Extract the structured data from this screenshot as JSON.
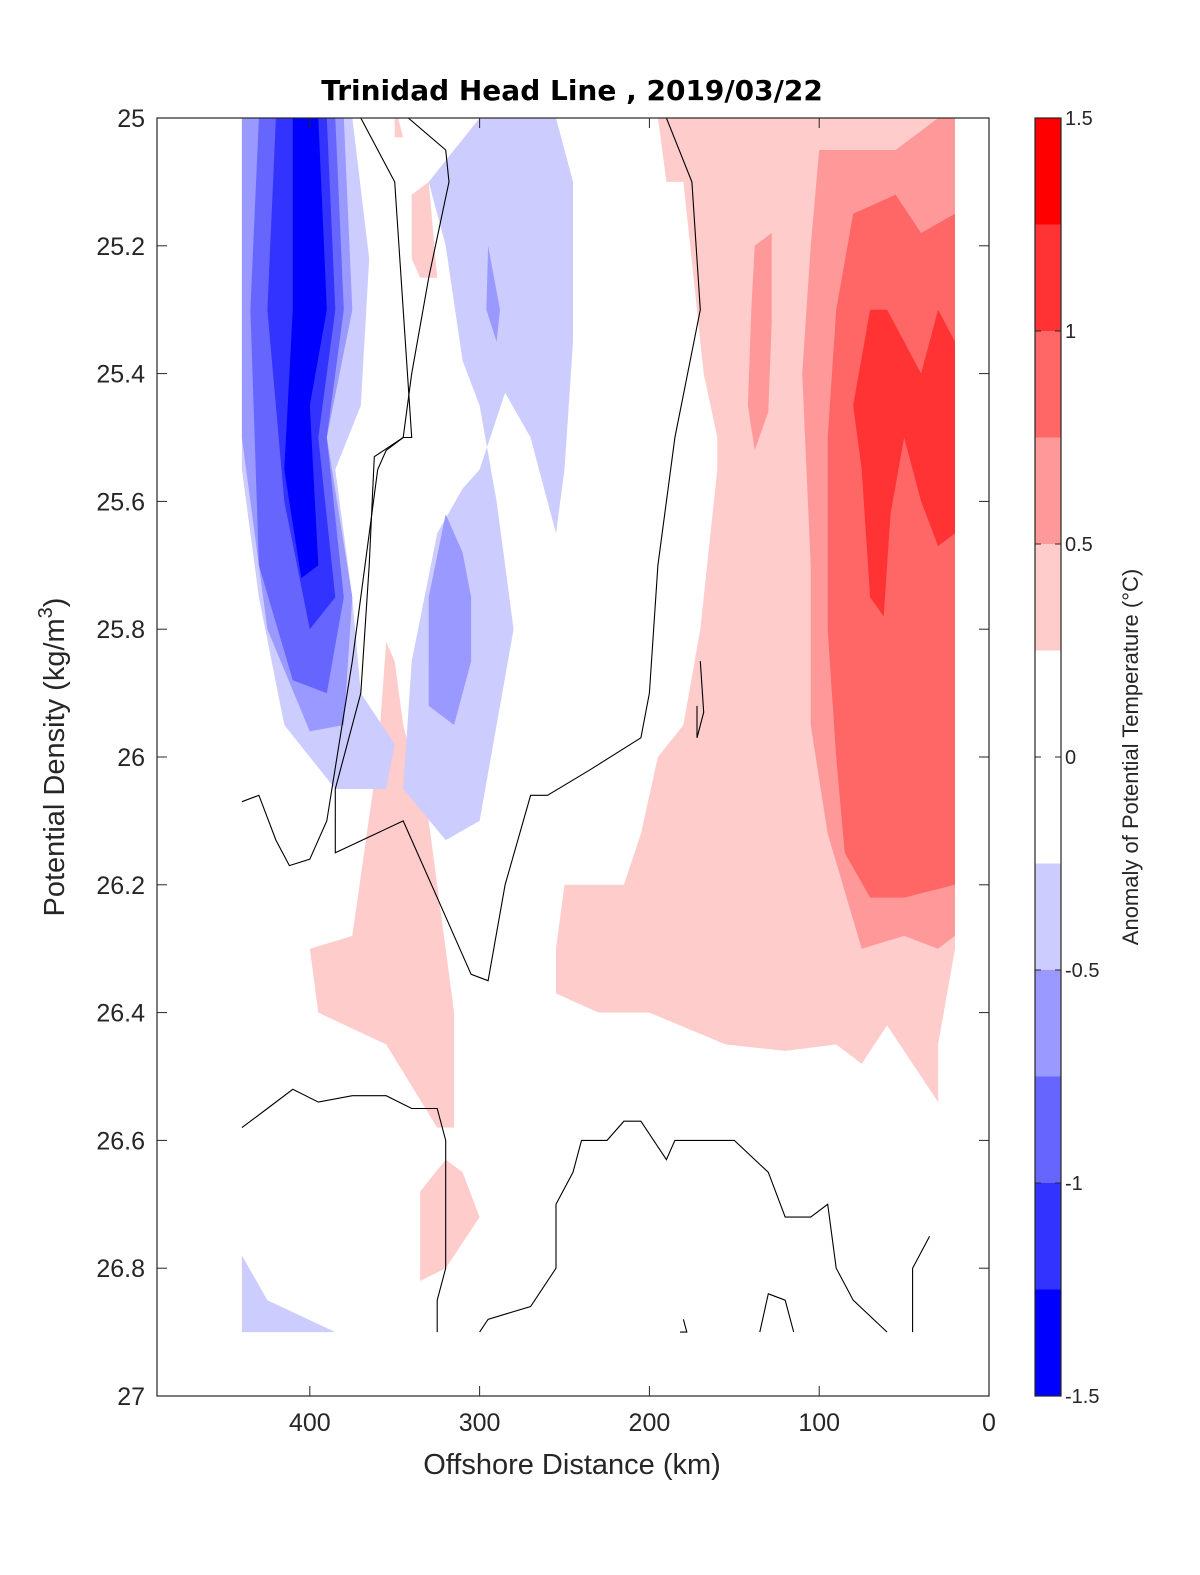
{
  "chart_data": {
    "type": "contour",
    "title": "Trinidad Head Line , 2019/03/22",
    "xlabel": "Offshore Distance (km)",
    "ylabel": "Potential Density (kg/m",
    "ylabel_sup": "3",
    "ylabel_close": ")",
    "colorbar_label": "Anomaly of Potential Temperature (°C)",
    "xlim": [
      490,
      0
    ],
    "ylim": [
      25,
      27
    ],
    "x_reversed": true,
    "y_reversed": true,
    "xticks": [
      400,
      300,
      200,
      100,
      0
    ],
    "xtick_labels": [
      "400",
      "300",
      "200",
      "100",
      "0"
    ],
    "yticks": [
      25,
      25.2,
      25.4,
      25.6,
      25.8,
      26,
      26.2,
      26.4,
      26.6,
      26.8,
      27
    ],
    "ytick_labels": [
      "25",
      "25.2",
      "25.4",
      "25.6",
      "25.8",
      "26",
      "26.2",
      "26.4",
      "26.6",
      "26.8",
      "27"
    ],
    "colorbar": {
      "range": [
        -1.5,
        1.5
      ],
      "ticks": [
        1.5,
        1,
        0.5,
        0,
        -0.5,
        -1,
        -1.5
      ],
      "tick_labels": [
        "1.5",
        "1",
        "0.5",
        "0",
        "-0.5",
        "-1",
        "-1.5"
      ],
      "levels": [
        -1.5,
        -1.25,
        -1.0,
        -0.75,
        -0.5,
        -0.25,
        0.25,
        0.5,
        0.75,
        1.0,
        1.25,
        1.5
      ],
      "colors": [
        "#0000ff",
        "#3333ff",
        "#6666ff",
        "#9999ff",
        "#ccccff",
        "#ffffff",
        "#ffcccc",
        "#ff9999",
        "#ff6666",
        "#ff3333",
        "#ff0000"
      ]
    },
    "fills": [
      {
        "level": 0.375,
        "color": "#ffcccc",
        "points": [
          [
            198,
            25
          ],
          [
            20,
            25
          ],
          [
            20,
            26.3
          ],
          [
            30,
            26.45
          ],
          [
            30,
            26.54
          ],
          [
            40,
            26.5
          ],
          [
            60,
            26.42
          ],
          [
            75,
            26.48
          ],
          [
            90,
            26.45
          ],
          [
            120,
            26.46
          ],
          [
            155,
            26.45
          ],
          [
            200,
            26.4
          ],
          [
            230,
            26.4
          ],
          [
            255,
            26.37
          ],
          [
            255,
            26.3
          ],
          [
            250,
            26.2
          ],
          [
            215,
            26.2
          ],
          [
            205,
            26.12
          ],
          [
            195,
            26.0
          ],
          [
            180,
            25.95
          ],
          [
            170,
            25.8
          ],
          [
            160,
            25.55
          ],
          [
            160,
            25.5
          ],
          [
            168,
            25.4
          ],
          [
            180,
            25.1
          ],
          [
            190,
            25.1
          ],
          [
            195,
            25.0
          ]
        ]
      },
      {
        "level": 0.625,
        "color": "#ff9999",
        "points": [
          [
            100,
            25.05
          ],
          [
            55,
            25.05
          ],
          [
            30,
            25.0
          ],
          [
            20,
            25.0
          ],
          [
            20,
            26.28
          ],
          [
            30,
            26.3
          ],
          [
            50,
            26.28
          ],
          [
            75,
            26.3
          ],
          [
            95,
            26.12
          ],
          [
            105,
            25.95
          ],
          [
            105,
            25.7
          ],
          [
            110,
            25.4
          ],
          [
            105,
            25.2
          ]
        ]
      },
      {
        "level": 0.875,
        "color": "#ff6666",
        "points": [
          [
            80,
            25.15
          ],
          [
            55,
            25.12
          ],
          [
            40,
            25.18
          ],
          [
            20,
            25.15
          ],
          [
            20,
            26.2
          ],
          [
            50,
            26.22
          ],
          [
            70,
            26.22
          ],
          [
            85,
            26.15
          ],
          [
            90,
            26.0
          ],
          [
            95,
            25.8
          ],
          [
            95,
            25.5
          ],
          [
            90,
            25.3
          ]
        ]
      },
      {
        "level": 1.125,
        "color": "#ff3333",
        "points": [
          [
            70,
            25.3
          ],
          [
            60,
            25.3
          ],
          [
            40,
            25.4
          ],
          [
            30,
            25.3
          ],
          [
            20,
            25.35
          ],
          [
            20,
            25.65
          ],
          [
            30,
            25.67
          ],
          [
            40,
            25.6
          ],
          [
            50,
            25.5
          ],
          [
            58,
            25.62
          ],
          [
            62,
            25.78
          ],
          [
            70,
            25.75
          ],
          [
            75,
            25.55
          ],
          [
            80,
            25.45
          ]
        ]
      },
      {
        "level": 0.625,
        "color": "#ff9999",
        "points": [
          [
            138,
            25.2
          ],
          [
            128,
            25.18
          ],
          [
            128,
            25.32
          ],
          [
            130,
            25.46
          ],
          [
            138,
            25.52
          ],
          [
            142,
            25.45
          ],
          [
            140,
            25.3
          ]
        ]
      },
      {
        "level": 0.375,
        "color": "#ffcccc",
        "points": [
          [
            340,
            25.12
          ],
          [
            330,
            25.1
          ],
          [
            325,
            25.25
          ],
          [
            335,
            25.25
          ],
          [
            340,
            25.22
          ]
        ]
      },
      {
        "level": 0.375,
        "color": "#ffcccc",
        "points": [
          [
            350,
            25.0
          ],
          [
            348,
            25.0
          ],
          [
            345,
            25.03
          ],
          [
            350,
            25.03
          ]
        ]
      },
      {
        "level": 0.375,
        "color": "#ffcccc",
        "points": [
          [
            355,
            25.82
          ],
          [
            360,
            26.0
          ],
          [
            375,
            26.28
          ],
          [
            400,
            26.3
          ],
          [
            395,
            26.4
          ],
          [
            355,
            26.45
          ],
          [
            325,
            26.58
          ],
          [
            315,
            26.58
          ],
          [
            315,
            26.4
          ],
          [
            330,
            26.1
          ],
          [
            345,
            25.95
          ],
          [
            350,
            25.85
          ]
        ]
      },
      {
        "level": 0.375,
        "color": "#ffcccc",
        "points": [
          [
            320,
            26.63
          ],
          [
            335,
            26.68
          ],
          [
            335,
            26.82
          ],
          [
            320,
            26.8
          ],
          [
            300,
            26.72
          ],
          [
            310,
            26.65
          ]
        ]
      },
      {
        "level": -0.375,
        "color": "#ccccff",
        "points": [
          [
            440,
            25.0
          ],
          [
            375,
            25.0
          ],
          [
            365,
            25.22
          ],
          [
            370,
            25.45
          ],
          [
            385,
            25.55
          ],
          [
            375,
            25.75
          ],
          [
            370,
            25.9
          ],
          [
            350,
            25.98
          ],
          [
            355,
            26.05
          ],
          [
            385,
            26.05
          ],
          [
            415,
            25.95
          ],
          [
            430,
            25.75
          ],
          [
            440,
            25.55
          ]
        ]
      },
      {
        "level": -0.625,
        "color": "#9999ff",
        "points": [
          [
            440,
            25.0
          ],
          [
            380,
            25.0
          ],
          [
            375,
            25.3
          ],
          [
            390,
            25.5
          ],
          [
            375,
            25.75
          ],
          [
            380,
            25.95
          ],
          [
            400,
            25.96
          ],
          [
            425,
            25.8
          ],
          [
            440,
            25.5
          ]
        ]
      },
      {
        "level": -0.875,
        "color": "#6666ff",
        "points": [
          [
            430,
            25.0
          ],
          [
            385,
            25.0
          ],
          [
            380,
            25.3
          ],
          [
            390,
            25.5
          ],
          [
            380,
            25.75
          ],
          [
            390,
            25.9
          ],
          [
            410,
            25.88
          ],
          [
            430,
            25.7
          ],
          [
            435,
            25.3
          ]
        ]
      },
      {
        "level": -1.125,
        "color": "#3333ff",
        "points": [
          [
            420,
            25.0
          ],
          [
            390,
            25.0
          ],
          [
            385,
            25.3
          ],
          [
            395,
            25.5
          ],
          [
            385,
            25.75
          ],
          [
            400,
            25.8
          ],
          [
            415,
            25.6
          ],
          [
            425,
            25.3
          ]
        ]
      },
      {
        "level": -1.375,
        "color": "#0000ff",
        "points": [
          [
            410,
            25.0
          ],
          [
            395,
            25.0
          ],
          [
            390,
            25.3
          ],
          [
            400,
            25.45
          ],
          [
            395,
            25.7
          ],
          [
            405,
            25.72
          ],
          [
            415,
            25.55
          ],
          [
            410,
            25.3
          ]
        ]
      },
      {
        "level": -0.375,
        "color": "#ccccff",
        "points": [
          [
            295,
            25.0
          ],
          [
            255,
            25.0
          ],
          [
            245,
            25.1
          ],
          [
            245,
            25.35
          ],
          [
            250,
            25.55
          ],
          [
            255,
            25.65
          ],
          [
            265,
            25.55
          ],
          [
            270,
            25.5
          ],
          [
            285,
            25.43
          ],
          [
            300,
            25.55
          ],
          [
            310,
            25.58
          ],
          [
            325,
            25.65
          ],
          [
            340,
            25.85
          ],
          [
            345,
            26.05
          ],
          [
            320,
            26.13
          ],
          [
            300,
            26.1
          ],
          [
            280,
            25.8
          ],
          [
            290,
            25.6
          ],
          [
            300,
            25.45
          ],
          [
            310,
            25.38
          ],
          [
            320,
            25.2
          ],
          [
            330,
            25.1
          ],
          [
            300,
            25.0
          ]
        ]
      },
      {
        "level": -0.625,
        "color": "#9999ff",
        "points": [
          [
            320,
            25.62
          ],
          [
            330,
            25.75
          ],
          [
            330,
            25.92
          ],
          [
            315,
            25.95
          ],
          [
            305,
            25.85
          ],
          [
            305,
            25.75
          ],
          [
            310,
            25.68
          ]
        ]
      },
      {
        "level": -0.625,
        "color": "#9999ff",
        "points": [
          [
            295,
            25.2
          ],
          [
            288,
            25.3
          ],
          [
            290,
            25.35
          ],
          [
            296,
            25.3
          ]
        ]
      },
      {
        "level": -0.375,
        "color": "#ccccff",
        "points": [
          [
            440,
            26.78
          ],
          [
            425,
            26.85
          ],
          [
            385,
            26.9
          ],
          [
            440,
            26.9
          ]
        ]
      }
    ],
    "contour_zero": [
      [
        [
          440,
          26.07
        ],
        [
          430,
          26.06
        ],
        [
          420,
          26.13
        ],
        [
          412,
          26.17
        ],
        [
          400,
          26.16
        ],
        [
          390,
          26.1
        ],
        [
          375,
          25.85
        ],
        [
          360,
          25.55
        ],
        [
          355,
          25.52
        ],
        [
          345,
          25.5
        ],
        [
          340,
          25.5
        ],
        [
          345,
          25.3
        ],
        [
          350,
          25.1
        ],
        [
          370,
          25.0
        ]
      ],
      [
        [
          342,
          25.0
        ],
        [
          320,
          25.05
        ],
        [
          318,
          25.1
        ],
        [
          330,
          25.25
        ],
        [
          340,
          25.4
        ],
        [
          345,
          25.5
        ],
        [
          362,
          25.53
        ],
        [
          365,
          25.7
        ],
        [
          370,
          25.9
        ],
        [
          385,
          26.05
        ],
        [
          385,
          26.15
        ],
        [
          345,
          26.1
        ],
        [
          320,
          26.25
        ],
        [
          305,
          26.34
        ],
        [
          295,
          26.35
        ],
        [
          285,
          26.2
        ],
        [
          270,
          26.06
        ],
        [
          260,
          26.06
        ],
        [
          235,
          26.02
        ],
        [
          205,
          25.97
        ],
        [
          200,
          25.9
        ],
        [
          195,
          25.7
        ],
        [
          185,
          25.5
        ],
        [
          170,
          25.3
        ],
        [
          175,
          25.1
        ],
        [
          190,
          25.0
        ]
      ],
      [
        [
          440,
          26.58
        ],
        [
          425,
          26.55
        ],
        [
          410,
          26.52
        ],
        [
          395,
          26.54
        ],
        [
          375,
          26.53
        ],
        [
          355,
          26.53
        ],
        [
          340,
          26.55
        ],
        [
          325,
          26.55
        ],
        [
          320,
          26.6
        ],
        [
          320,
          26.8
        ],
        [
          325,
          26.85
        ],
        [
          325,
          26.9
        ]
      ],
      [
        [
          300,
          26.9
        ],
        [
          295,
          26.88
        ],
        [
          270,
          26.86
        ],
        [
          255,
          26.8
        ],
        [
          255,
          26.7
        ],
        [
          245,
          26.65
        ],
        [
          240,
          26.6
        ],
        [
          225,
          26.6
        ],
        [
          215,
          26.57
        ],
        [
          205,
          26.57
        ],
        [
          190,
          26.63
        ],
        [
          185,
          26.6
        ],
        [
          175,
          26.6
        ],
        [
          150,
          26.6
        ],
        [
          130,
          26.65
        ],
        [
          120,
          26.72
        ],
        [
          105,
          26.72
        ],
        [
          95,
          26.7
        ],
        [
          90,
          26.8
        ],
        [
          80,
          26.85
        ],
        [
          60,
          26.9
        ]
      ],
      [
        [
          170,
          25.85
        ],
        [
          168,
          25.93
        ],
        [
          172,
          25.97
        ],
        [
          172,
          25.92
        ]
      ],
      [
        [
          180,
          26.88
        ],
        [
          178,
          26.9
        ],
        [
          182,
          26.9
        ]
      ],
      [
        [
          135,
          26.9
        ],
        [
          130,
          26.84
        ],
        [
          120,
          26.85
        ],
        [
          115,
          26.9
        ]
      ],
      [
        [
          45,
          26.9
        ],
        [
          45,
          26.8
        ],
        [
          35,
          26.75
        ]
      ]
    ]
  }
}
